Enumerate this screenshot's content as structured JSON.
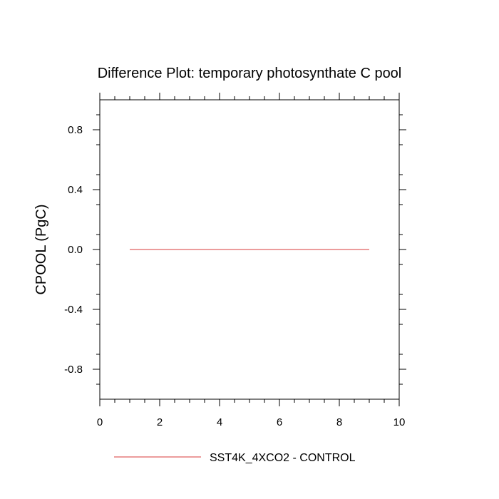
{
  "chart_data": {
    "type": "line",
    "title": "Difference Plot: temporary photosynthate C pool",
    "xlabel": "",
    "ylabel": "CPOOL  (PgC)",
    "xlim": [
      0,
      10
    ],
    "ylim": [
      -1,
      1
    ],
    "x_ticks": [
      0,
      2,
      4,
      6,
      8,
      10
    ],
    "x_tick_labels": [
      "0",
      "2",
      "4",
      "6",
      "8",
      "10"
    ],
    "y_ticks": [
      -0.8,
      -0.4,
      0.0,
      0.4,
      0.8
    ],
    "y_tick_labels": [
      "-0.8",
      "-0.4",
      "0.0",
      "0.4",
      "0.8"
    ],
    "grid": false,
    "legend_position": "bottom",
    "series": [
      {
        "name": "SST4K_4XCO2 - CONTROL",
        "color": "#e06060",
        "x": [
          1,
          2,
          3,
          4,
          5,
          6,
          7,
          8,
          9
        ],
        "y": [
          0,
          0,
          0,
          0,
          0,
          0,
          0,
          0,
          0
        ]
      }
    ]
  }
}
